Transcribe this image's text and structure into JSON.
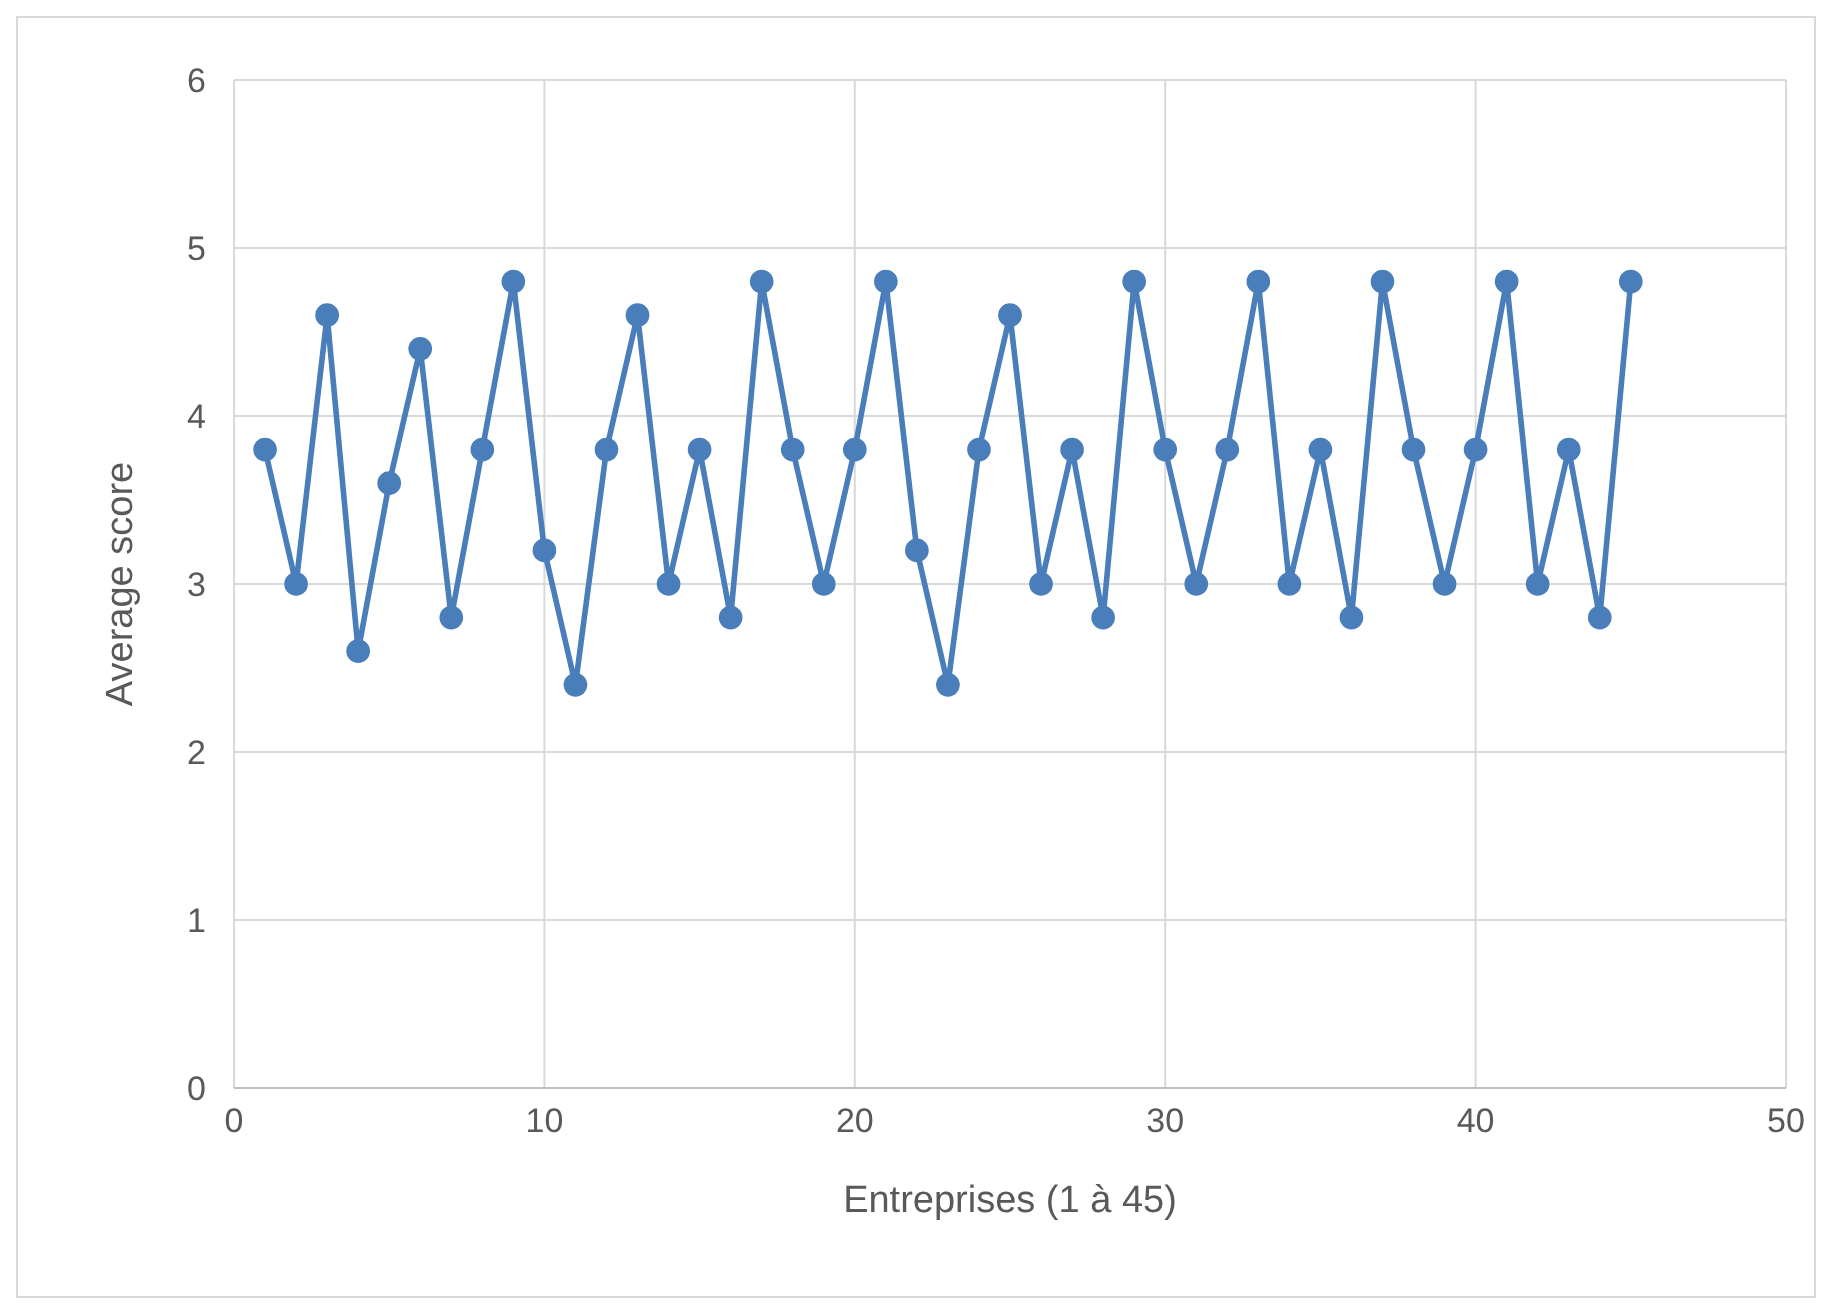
{
  "chart_data": {
    "type": "line",
    "xlabel": "Entreprises (1 à 45)",
    "ylabel": "Average score",
    "x": [
      1,
      2,
      3,
      4,
      5,
      6,
      7,
      8,
      9,
      10,
      11,
      12,
      13,
      14,
      15,
      16,
      17,
      18,
      19,
      20,
      21,
      22,
      23,
      24,
      25,
      26,
      27,
      28,
      29,
      30,
      31,
      32,
      33,
      34,
      35,
      36,
      37,
      38,
      39,
      40,
      41,
      42,
      43,
      44,
      45
    ],
    "series": [
      {
        "color": "#4a7ebb",
        "values": [
          3.8,
          3.0,
          4.6,
          2.6,
          3.6,
          4.4,
          2.8,
          3.8,
          4.8,
          3.2,
          2.4,
          3.8,
          4.6,
          3.0,
          3.8,
          2.8,
          4.8,
          3.8,
          3.0,
          3.8,
          4.8,
          3.2,
          2.4,
          3.8,
          4.6,
          3.0,
          3.8,
          2.8,
          4.8,
          3.8,
          3.0,
          3.8,
          4.8,
          3.0,
          3.8,
          2.8,
          4.8,
          3.8,
          3.0,
          3.8,
          4.8,
          3.0,
          3.8,
          2.8,
          4.8
        ]
      }
    ],
    "xlim": [
      0,
      50
    ],
    "xticks": [
      0,
      10,
      20,
      30,
      40,
      50
    ],
    "ylim": [
      0,
      6
    ],
    "yticks": [
      0,
      1,
      2,
      3,
      4,
      5,
      6
    ],
    "grid": true,
    "marker": "circle",
    "line_style": "solid"
  }
}
